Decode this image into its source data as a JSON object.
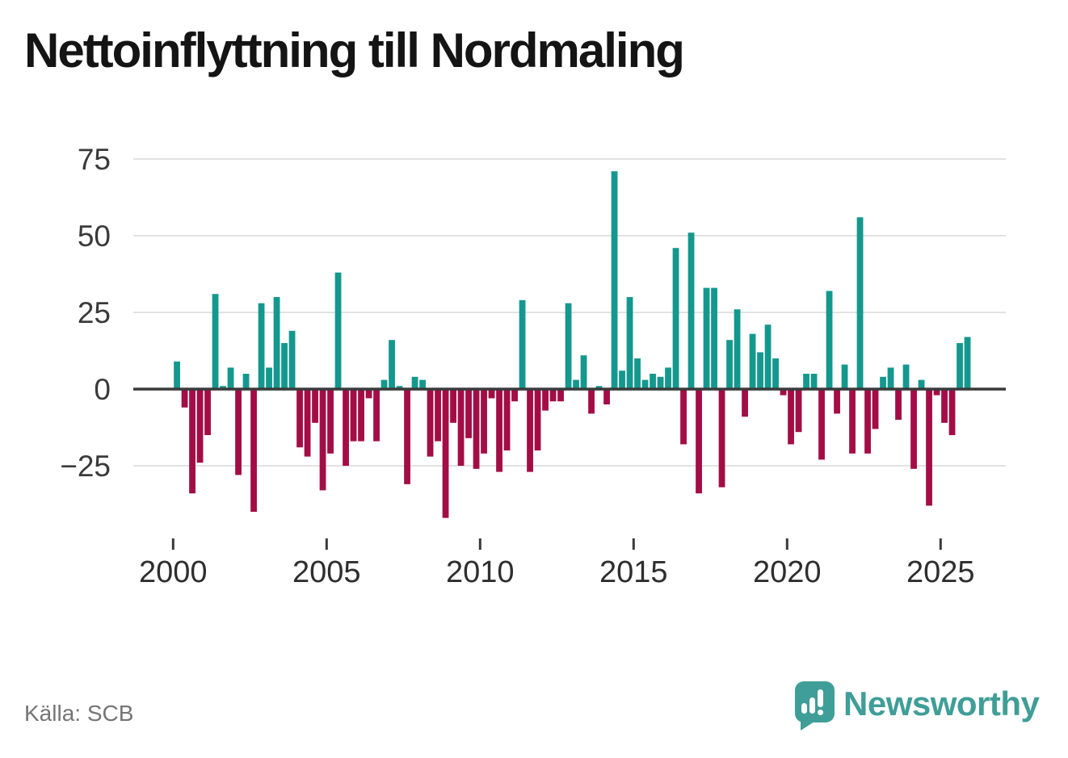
{
  "page": {
    "title": "Nettoinflyttning till Nordmaling",
    "source": "Källa: SCB",
    "brand": "Newsworthy",
    "brand_icon": "speech-bubble-bar-chart-icon"
  },
  "colors": {
    "positive": "#14988e",
    "negative": "#a30d45",
    "axis": "#3a3a3a",
    "grid": "#e2e2e2",
    "tick": "#3a3a3a",
    "y_label": "#3a3a3a",
    "x_label": "#2e2e2e",
    "title": "#141414",
    "source": "#757575",
    "brand_teal": "#3f9e97"
  },
  "chart_data": {
    "type": "bar",
    "title": "Nettoinflyttning till Nordmaling",
    "frequency": "quarterly",
    "start_year": 2000,
    "end_year": 2025,
    "values": [
      9,
      -6,
      -34,
      -24,
      -15,
      31,
      1,
      7,
      -28,
      5,
      -40,
      28,
      7,
      30,
      15,
      19,
      -19,
      -22,
      -11,
      -33,
      -21,
      38,
      -25,
      -17,
      -17,
      -3,
      -17,
      3,
      16,
      1,
      -31,
      4,
      3,
      -22,
      -17,
      -42,
      -11,
      -25,
      -16,
      -26,
      -21,
      -3,
      -27,
      -20,
      -4,
      29,
      -27,
      -20,
      -7,
      -4,
      -4,
      28,
      3,
      11,
      -8,
      1,
      -5,
      71,
      6,
      30,
      10,
      3,
      5,
      4,
      7,
      46,
      -18,
      51,
      -34,
      33,
      33,
      -32,
      16,
      26,
      -9,
      18,
      12,
      21,
      10,
      -2,
      -18,
      -14,
      5,
      5,
      -23,
      32,
      -8,
      8,
      -21,
      56,
      -21,
      -13,
      4,
      7,
      -10,
      8,
      -26,
      3,
      -38,
      -2,
      -11,
      -15,
      15,
      17
    ],
    "yticks": [
      75,
      50,
      25,
      0,
      -25
    ],
    "xticks": [
      2000,
      2005,
      2010,
      2015,
      2020,
      2025
    ],
    "ylim": [
      -45,
      80
    ],
    "grid": true,
    "legend": "none",
    "xlabel": "",
    "ylabel": ""
  }
}
